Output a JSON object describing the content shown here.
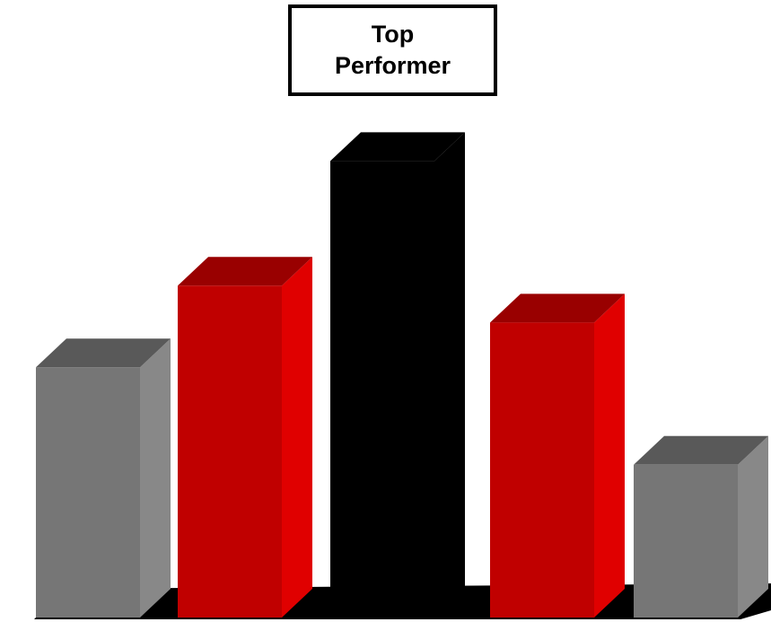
{
  "chart_data": {
    "type": "bar",
    "style": "3d",
    "title": "",
    "xlabel": "",
    "ylabel": "",
    "categories": [
      "",
      "",
      "",
      "",
      ""
    ],
    "values": [
      285,
      378,
      520,
      336,
      174
    ],
    "ylim": [
      0,
      550
    ],
    "grid": false,
    "legend": "none",
    "annotation": {
      "text": "Top\nPerformer",
      "target_index": 2,
      "placement": "above"
    },
    "colors": {
      "gray": "#767676",
      "red": "#c00000",
      "black": "#000000",
      "floor": "#000000"
    },
    "bar_colors": [
      "gray",
      "red",
      "black",
      "red",
      "gray"
    ]
  }
}
